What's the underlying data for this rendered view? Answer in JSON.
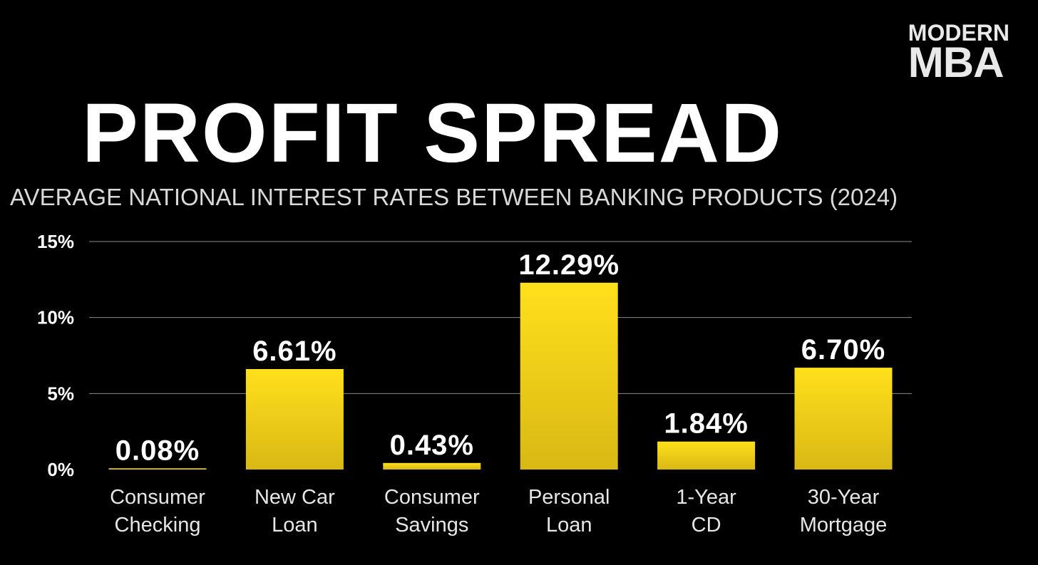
{
  "logo": {
    "line1": "MODERN",
    "line2": "MBA"
  },
  "chart_data": {
    "type": "bar",
    "title": "PROFIT SPREAD",
    "subtitle": "AVERAGE NATIONAL INTEREST RATES BETWEEN BANKING PRODUCTS (2024)",
    "categories": [
      [
        "Consumer",
        "Checking"
      ],
      [
        "New Car",
        "Loan"
      ],
      [
        "Consumer",
        "Savings"
      ],
      [
        "Personal",
        "Loan"
      ],
      [
        "1-Year",
        "CD"
      ],
      [
        "30-Year",
        "Mortgage"
      ]
    ],
    "values": [
      0.08,
      6.61,
      0.43,
      12.29,
      1.84,
      6.7
    ],
    "value_labels": [
      "0.08%",
      "6.61%",
      "0.43%",
      "12.29%",
      "1.84%",
      "6.70%"
    ],
    "yticks": [
      0,
      5,
      10,
      15
    ],
    "ytick_labels": [
      "0%",
      "5%",
      "10%",
      "15%"
    ],
    "ylim": [
      0,
      15
    ],
    "grid": true,
    "xlabel": "",
    "ylabel": "",
    "bar_color_top": "#ffe01b",
    "bar_color_bottom": "#d9b814"
  }
}
